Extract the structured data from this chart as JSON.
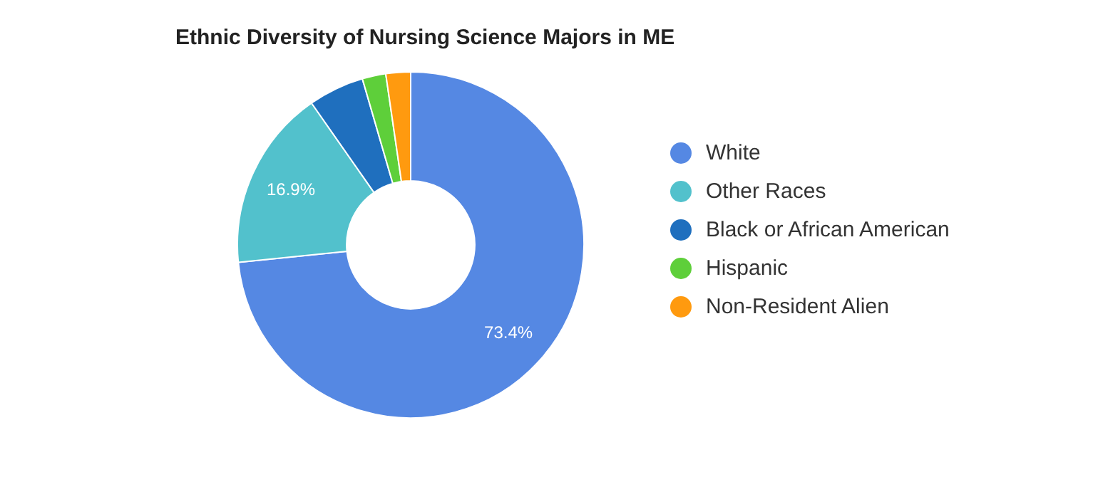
{
  "chart_data": {
    "type": "donut",
    "title": "Ethnic Diversity of Nursing Science Majors in ME",
    "categories": [
      "White",
      "Other Races",
      "Black or African American",
      "Hispanic",
      "Non-Resident Alien"
    ],
    "values": [
      73.4,
      16.9,
      5.2,
      2.2,
      2.3
    ],
    "colors": [
      "#5588e3",
      "#52c1cc",
      "#1f6fbe",
      "#5ecf3a",
      "#ff9a0f"
    ],
    "value_labels": [
      "73.4%",
      "16.9%",
      null,
      null,
      null
    ],
    "legend": "right"
  }
}
